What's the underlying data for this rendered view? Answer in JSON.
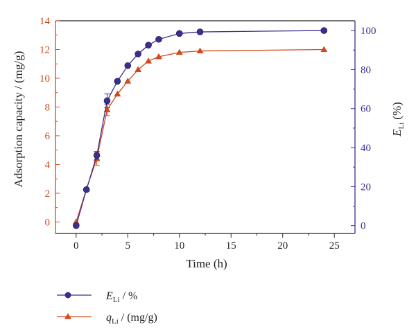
{
  "chart_data": {
    "type": "line",
    "x": [
      0,
      1,
      2,
      3,
      4,
      5,
      6,
      7,
      8,
      10,
      12,
      24
    ],
    "xlabel": "Time (h)",
    "xlim": [
      -2,
      27
    ],
    "xticks": [
      0,
      5,
      10,
      15,
      20,
      25
    ],
    "ylabel_left": "Adsorption capacity / (mg/g)",
    "ylim_left": [
      -0.8,
      14
    ],
    "yticks_left": [
      0,
      2,
      4,
      6,
      8,
      10,
      12,
      14
    ],
    "ylabel_right_main": "E",
    "ylabel_right_sub": "Li",
    "ylabel_right_suffix": "(%)",
    "ylim_right": [
      -4,
      105
    ],
    "yticks_right": [
      0,
      20,
      40,
      60,
      80,
      100
    ],
    "grid": false,
    "legend_position": "bottom-left",
    "series": [
      {
        "name_main": "E",
        "name_sub": "Li",
        "name_suffix": "/ %",
        "axis": "right",
        "color": "#3a2f8c",
        "marker": "circle",
        "values": [
          0,
          18.5,
          36,
          64,
          74,
          82,
          88,
          92.5,
          95.5,
          98.5,
          99.3,
          100
        ],
        "errors": [
          0,
          0,
          2,
          3.5,
          0,
          0,
          0,
          0,
          0,
          0,
          0,
          0
        ]
      },
      {
        "name_main": "q",
        "name_sub": "Li",
        "name_suffix": "/ (mg/g)",
        "axis": "left",
        "color": "#d04a1c",
        "marker": "triangle",
        "values": [
          0,
          2.3,
          4.4,
          7.8,
          8.9,
          9.8,
          10.6,
          11.2,
          11.5,
          11.8,
          11.9,
          12.0
        ],
        "errors": [
          0,
          0,
          0.45,
          0.4,
          0,
          0,
          0,
          0,
          0,
          0,
          0,
          0
        ]
      }
    ]
  }
}
